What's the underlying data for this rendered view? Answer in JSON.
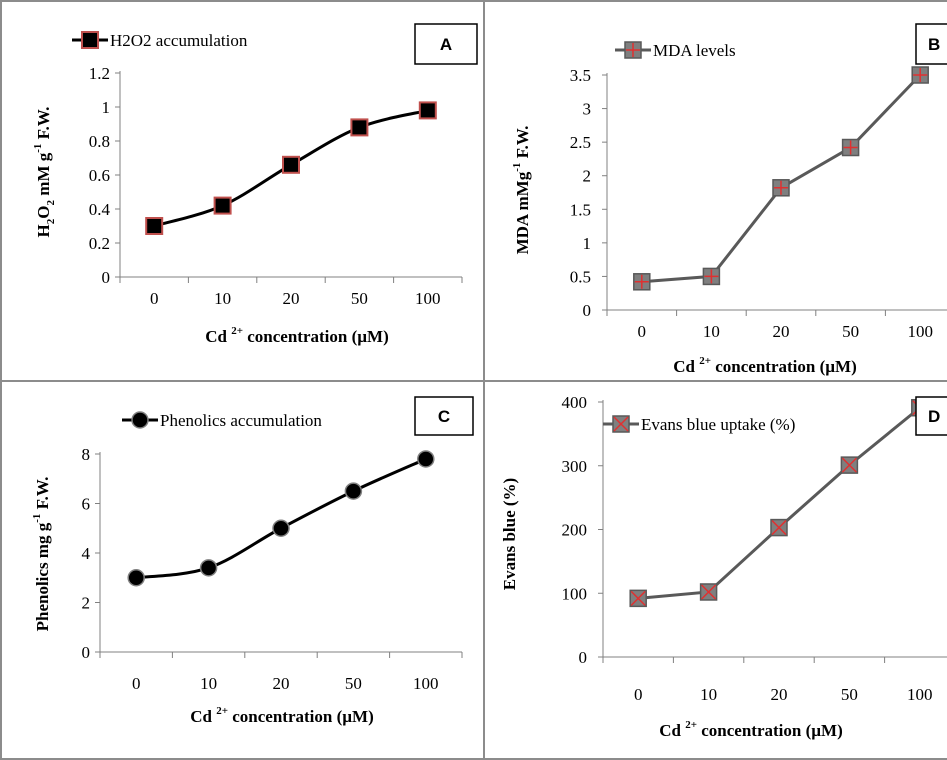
{
  "chart_data": [
    {
      "panel": "A",
      "type": "line",
      "categories": [
        "0",
        "10",
        "20",
        "50",
        "100"
      ],
      "series": [
        {
          "name": "H2O2 accumulation",
          "values": [
            0.3,
            0.42,
            0.66,
            0.88,
            0.98
          ],
          "marker": "square",
          "line_color": "#000000",
          "marker_fill": "#000000",
          "marker_stroke": "#c0504d"
        }
      ],
      "ylim": [
        0,
        1.2
      ],
      "yticks": [
        "0",
        "0.2",
        "0.4",
        "0.6",
        "0.8",
        "1",
        "1.2"
      ],
      "ytick_values": [
        0,
        0.2,
        0.4,
        0.6,
        0.8,
        1,
        1.2
      ],
      "xlabel": {
        "a": "Cd",
        "sup": "2+",
        "b": " concentration (µM)"
      },
      "ylabel": {
        "a": "H",
        "sub1": "2",
        "b": "O",
        "sub2": "2",
        "c": " mM g",
        "sup": "-1",
        "d": " F.W."
      },
      "legend": "top-left",
      "grid": false
    },
    {
      "panel": "B",
      "type": "line",
      "categories": [
        "0",
        "10",
        "20",
        "50",
        "100"
      ],
      "series": [
        {
          "name": "MDA levels",
          "values": [
            0.42,
            0.5,
            1.82,
            2.42,
            3.5
          ],
          "marker": "square-plus",
          "line_color": "#595959",
          "marker_fill": "#7f7f7f",
          "marker_stroke": "#595959",
          "cross_color": "#e03030"
        }
      ],
      "ylim": [
        0,
        3.5
      ],
      "yticks": [
        "0",
        "0.5",
        "1",
        "1.5",
        "2",
        "2.5",
        "3",
        "3.5"
      ],
      "ytick_values": [
        0,
        0.5,
        1,
        1.5,
        2,
        2.5,
        3,
        3.5
      ],
      "xlabel": {
        "a": "Cd",
        "sup": "2+",
        "b": " concentration (µM)"
      },
      "ylabel": {
        "a": "MDA mMg",
        "sup": "-1",
        "b": " F.W."
      },
      "legend": "top-center",
      "grid": false
    },
    {
      "panel": "C",
      "type": "line",
      "categories": [
        "0",
        "10",
        "20",
        "50",
        "100"
      ],
      "series": [
        {
          "name": "Phenolics accumulation",
          "values": [
            3.0,
            3.4,
            5.0,
            6.5,
            7.8
          ],
          "marker": "circle",
          "line_color": "#000000",
          "marker_fill": "#000000",
          "marker_stroke": "#808080"
        }
      ],
      "ylim": [
        0,
        8
      ],
      "yticks": [
        "0",
        "2",
        "4",
        "6",
        "8"
      ],
      "ytick_values": [
        0,
        2,
        4,
        6,
        8
      ],
      "xlabel": {
        "a": "Cd",
        "sup": "2+",
        "b": " concentration (µM)"
      },
      "ylabel": {
        "a": "Phenolics mg g",
        "sup": "-1",
        "b": " F.W."
      },
      "legend": "top-left",
      "grid": false
    },
    {
      "panel": "D",
      "type": "line",
      "categories": [
        "0",
        "10",
        "20",
        "50",
        "100"
      ],
      "series": [
        {
          "name": "Evans blue uptake (%)",
          "values": [
            92,
            102,
            203,
            301,
            391
          ],
          "marker": "square-x",
          "line_color": "#595959",
          "marker_fill": "#7f7f7f",
          "marker_stroke": "#595959",
          "cross_color": "#e03030"
        }
      ],
      "ylim": [
        0,
        400
      ],
      "yticks": [
        "0",
        "100",
        "200",
        "300",
        "400"
      ],
      "ytick_values": [
        0,
        100,
        200,
        300,
        400
      ],
      "xlabel": {
        "a": "Cd",
        "sup": "2+",
        "b": " concentration (µM)"
      },
      "ylabel": {
        "a": "Evans blue (%)"
      },
      "legend": "top-left",
      "grid": false
    }
  ]
}
